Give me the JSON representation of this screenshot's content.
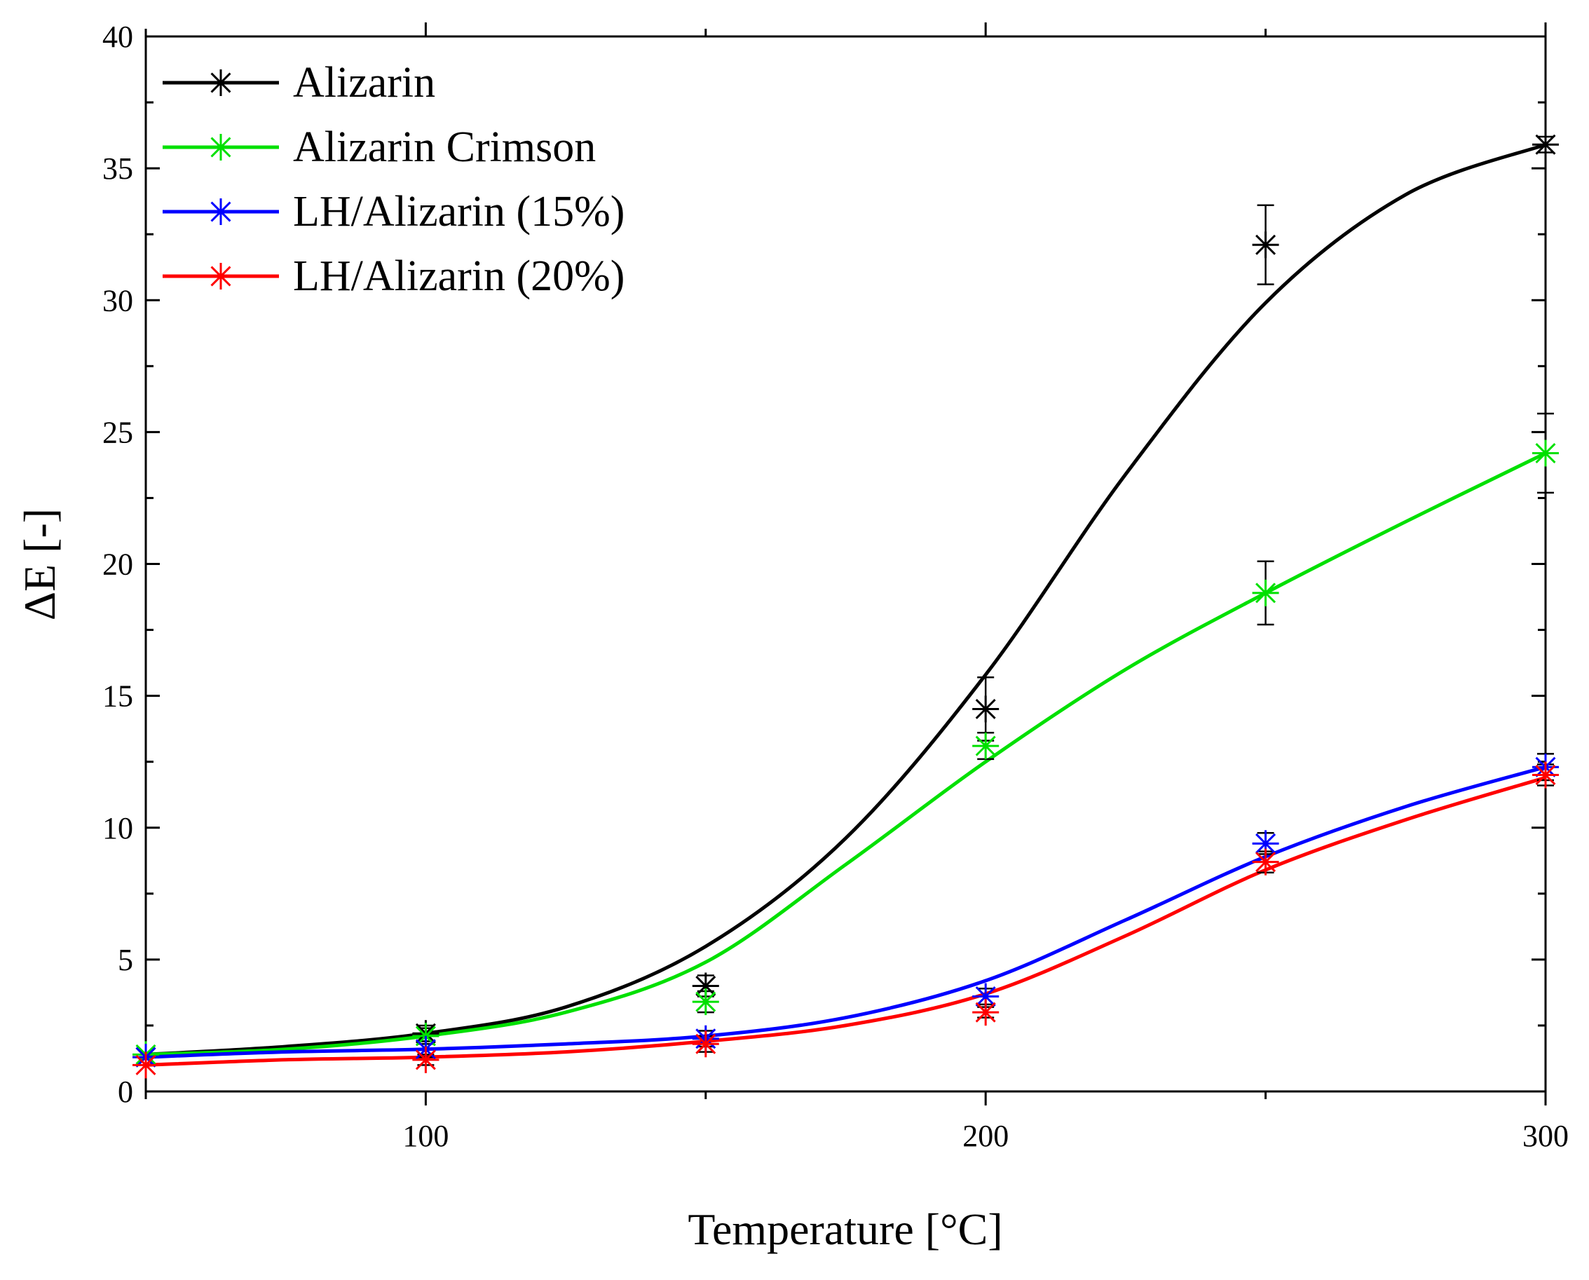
{
  "chart_data": {
    "type": "line",
    "xlabel": "Temperature [°C]",
    "ylabel": "ΔE [-]",
    "xlim": [
      50,
      300
    ],
    "ylim": [
      0,
      40
    ],
    "xticks": [
      100,
      200,
      300
    ],
    "yticks": [
      0,
      5,
      10,
      15,
      20,
      25,
      30,
      35,
      40
    ],
    "x": [
      50,
      100,
      150,
      200,
      250,
      300
    ],
    "legend_position": "top-left",
    "grid": false,
    "series": [
      {
        "name": "Alizarin",
        "color": "#000000",
        "points": [
          1.3,
          2.2,
          4.0,
          14.5,
          32.1,
          35.9
        ],
        "errors": [
          0.1,
          0.3,
          0.4,
          1.2,
          1.5,
          0.3
        ],
        "fit": [
          [
            50,
            1.4
          ],
          [
            75,
            1.7
          ],
          [
            100,
            2.2
          ],
          [
            125,
            3.2
          ],
          [
            150,
            5.5
          ],
          [
            175,
            9.6
          ],
          [
            200,
            15.8
          ],
          [
            225,
            23.4
          ],
          [
            250,
            29.9
          ],
          [
            275,
            34.0
          ],
          [
            300,
            35.9
          ]
        ]
      },
      {
        "name": "Alizarin Crimson",
        "color": "#00e000",
        "points": [
          1.4,
          2.1,
          3.4,
          13.1,
          18.9,
          24.2
        ],
        "errors": [
          0.1,
          0.3,
          0.4,
          0.5,
          1.2,
          1.5
        ],
        "fit": [
          [
            50,
            1.4
          ],
          [
            75,
            1.6
          ],
          [
            100,
            2.1
          ],
          [
            125,
            3.0
          ],
          [
            150,
            4.9
          ],
          [
            175,
            8.6
          ],
          [
            200,
            12.5
          ],
          [
            225,
            16.0
          ],
          [
            250,
            18.9
          ],
          [
            275,
            21.6
          ],
          [
            300,
            24.2
          ]
        ]
      },
      {
        "name": "LH/Alizarin (15%)",
        "color": "#0000ff",
        "points": [
          1.3,
          1.6,
          2.0,
          3.6,
          9.4,
          12.3
        ],
        "errors": [
          0.1,
          0.3,
          0.3,
          0.3,
          0.4,
          0.5
        ],
        "fit": [
          [
            50,
            1.3
          ],
          [
            75,
            1.5
          ],
          [
            100,
            1.6
          ],
          [
            125,
            1.8
          ],
          [
            150,
            2.1
          ],
          [
            175,
            2.8
          ],
          [
            200,
            4.2
          ],
          [
            225,
            6.5
          ],
          [
            250,
            8.9
          ],
          [
            275,
            10.8
          ],
          [
            300,
            12.3
          ]
        ]
      },
      {
        "name": "LH/Alizarin (20%)",
        "color": "#ff0000",
        "points": [
          1.0,
          1.2,
          1.8,
          3.0,
          8.7,
          12.0
        ],
        "errors": [
          0.1,
          0.2,
          0.3,
          0.2,
          0.4,
          0.4
        ],
        "fit": [
          [
            50,
            1.0
          ],
          [
            75,
            1.2
          ],
          [
            100,
            1.3
          ],
          [
            125,
            1.5
          ],
          [
            150,
            1.9
          ],
          [
            175,
            2.5
          ],
          [
            200,
            3.7
          ],
          [
            225,
            5.9
          ],
          [
            250,
            8.4
          ],
          [
            275,
            10.3
          ],
          [
            300,
            11.9
          ]
        ]
      }
    ]
  }
}
